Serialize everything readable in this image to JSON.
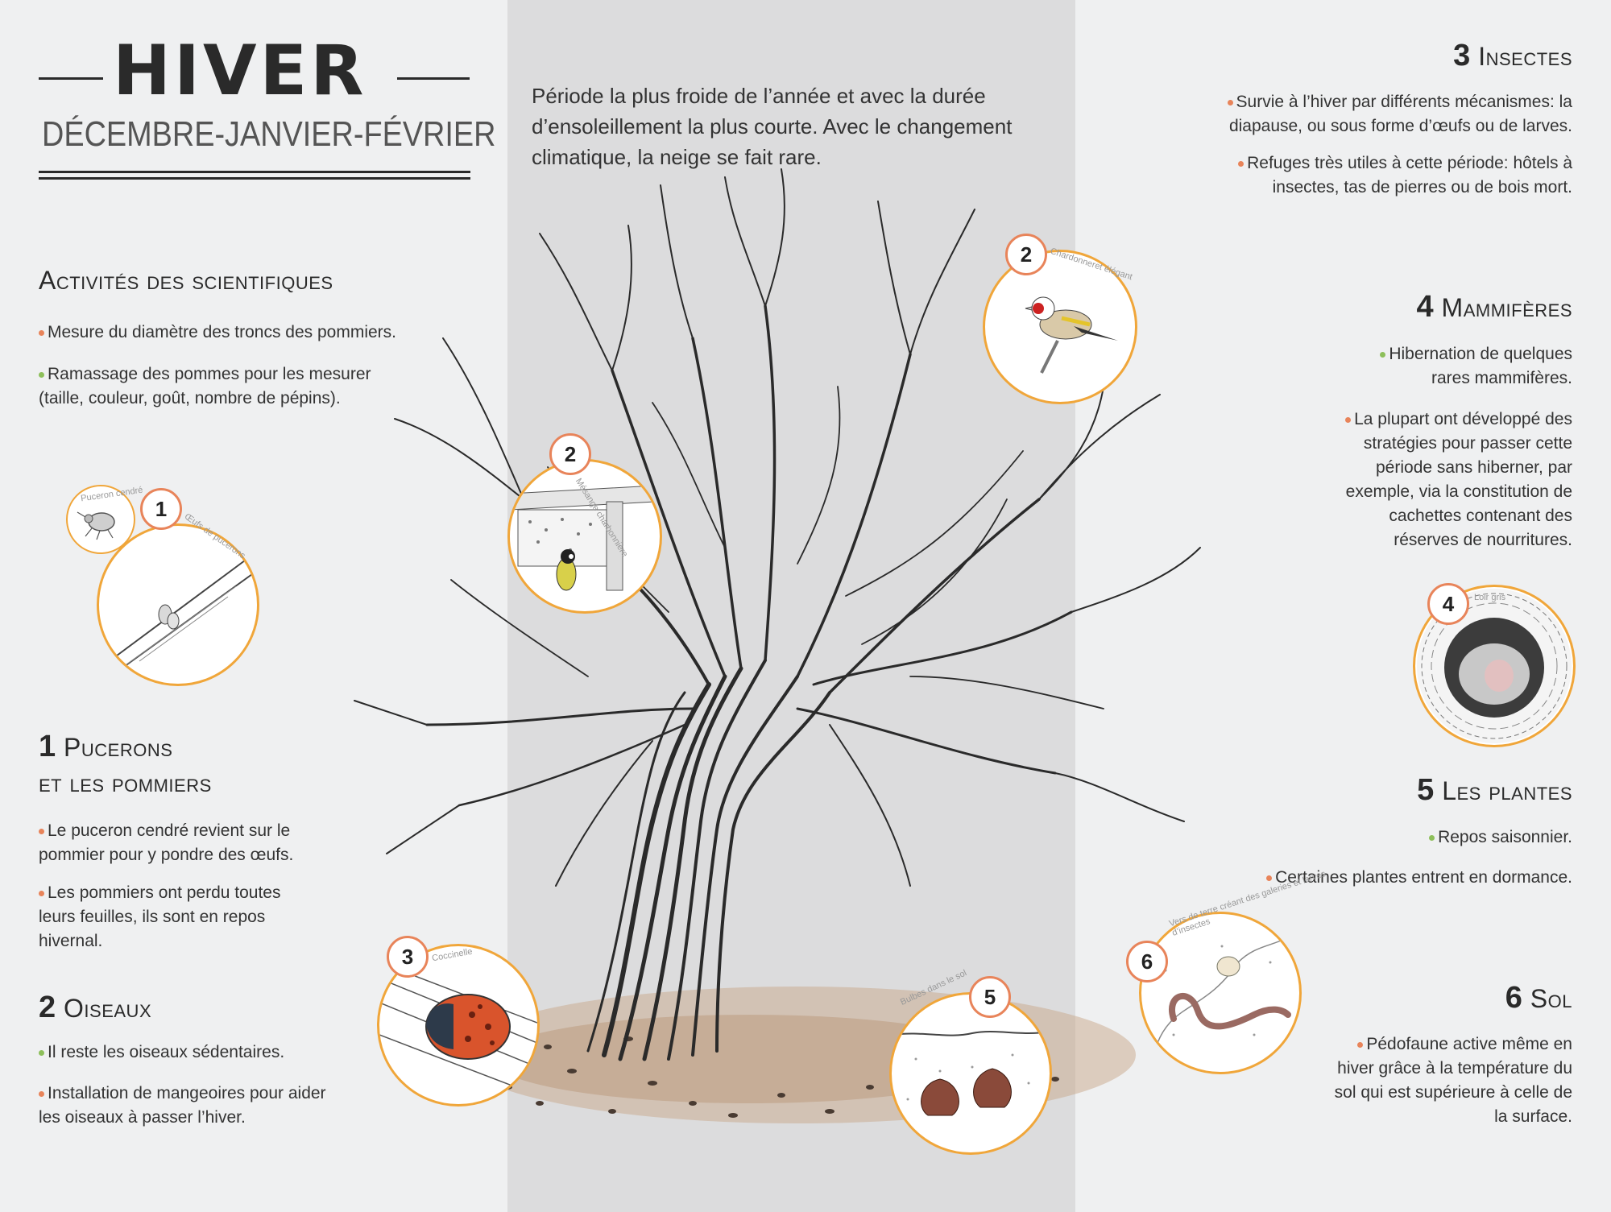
{
  "header": {
    "title": "HIVER",
    "months": "DÉCEMBRE-JANVIER-FÉVRIER",
    "intro": "Période la plus froide de l’année et avec la durée d’ensoleillement la plus courte. Avec le changement climatique, la neige se fait rare."
  },
  "colors": {
    "orange_bullet": "#e8845a",
    "green_bullet": "#8dbf5a",
    "vignette_border": "#f0a63a",
    "band": "#dcdcdd"
  },
  "left": {
    "activites": {
      "title": "Activités des scientifiques",
      "items": [
        "Mesure du diamètre des troncs des pommiers.",
        "Ramassage des pommes pour les mesurer (taille, couleur, goût, nombre de pépins)."
      ]
    },
    "pucerons": {
      "num": "1",
      "title_1": "Pucerons",
      "title_2": "et les pommiers",
      "items": [
        "Le puceron cendré revient sur le pommier pour y pondre des œufs.",
        "Les pommiers ont perdu toutes leurs feuilles, ils sont en repos hivernal."
      ]
    },
    "oiseaux": {
      "num": "2",
      "title": "Oiseaux",
      "items": [
        "Il reste les oiseaux sédentaires.",
        "Installation de mangeoires pour aider les oiseaux à passer l’hiver."
      ]
    }
  },
  "right": {
    "insectes": {
      "num": "3",
      "title": "Insectes",
      "items": [
        "Survie à l’hiver par différents mécanismes: la diapause, ou sous forme d’œufs ou de larves.",
        "Refuges très utiles à cette période: hôtels à insectes, tas de pierres ou de bois mort."
      ]
    },
    "mammiferes": {
      "num": "4",
      "title": "Mammifères",
      "items": [
        "Hibernation de quelques rares mammifères.",
        "La plupart ont développé des stratégies pour passer cette période sans hiberner, par exemple, via la constitution de cachettes contenant des réserves de nourritures."
      ]
    },
    "plantes": {
      "num": "5",
      "title": "Les plantes",
      "items": [
        "Repos saisonnier.",
        "Certaines plantes entrent en dormance."
      ]
    },
    "sol": {
      "num": "6",
      "title": "Sol",
      "items": [
        "Pédofaune active même en hiver grâce à la température du sol qui est supérieure à celle de la surface."
      ]
    }
  },
  "vignettes": {
    "v1": {
      "num": "1",
      "caption_a": "Puceron cendré",
      "caption_b": "Œufs de pucerons"
    },
    "v2a": {
      "num": "2",
      "caption": "Mésange charbonnière"
    },
    "v2b": {
      "num": "2",
      "caption": "Chardonneret élégant"
    },
    "v3": {
      "num": "3",
      "caption": "Coccinelle"
    },
    "v4": {
      "num": "4",
      "caption": "Loir gris"
    },
    "v5": {
      "num": "5",
      "caption": "Bulbes dans le sol"
    },
    "v6": {
      "num": "6",
      "caption": "Vers de terre créant des galeries et larves d’insectes"
    }
  }
}
